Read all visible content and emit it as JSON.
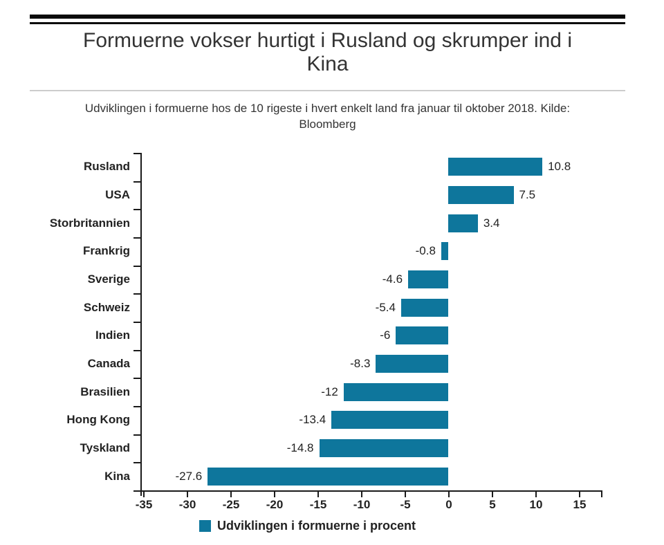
{
  "header": {
    "title_lines": [
      "Formuerne vokser hurtigt i Rusland og skrumper ind i",
      "Kina"
    ],
    "subtitle_lines": [
      "Udviklingen i formuerne hos de 10 rigeste i hvert enkelt land fra januar til oktober 2018. Kilde:",
      "Bloomberg"
    ]
  },
  "chart_data": {
    "type": "bar",
    "orientation": "horizontal",
    "title": "Formuerne vokser hurtigt i Rusland og skrumper ind i Kina",
    "subtitle": "Udviklingen i formuerne hos de 10 rigeste i hvert enkelt land fra januar til oktober 2018. Kilde: Bloomberg",
    "categories": [
      "Rusland",
      "USA",
      "Storbritannien",
      "Frankrig",
      "Sverige",
      "Schweiz",
      "Indien",
      "Canada",
      "Brasilien",
      "Hong Kong",
      "Tyskland",
      "Kina"
    ],
    "values": [
      10.8,
      7.5,
      3.4,
      -0.8,
      -4.6,
      -5.4,
      -6,
      -8.3,
      -12,
      -13.4,
      -14.8,
      -27.6
    ],
    "value_labels": [
      "10.8",
      "7.5",
      "3.4",
      "-0.8",
      "-4.6",
      "-5.4",
      "-6",
      "-8.3",
      "-12",
      "-13.4",
      "-14.8",
      "-27.6"
    ],
    "x_ticks": [
      -35,
      -30,
      -25,
      -20,
      -15,
      -10,
      -5,
      0,
      5,
      10,
      15
    ],
    "x_tick_labels": [
      "-35",
      "-30",
      "-25",
      "-20",
      "-15",
      "-10",
      "-5",
      "0",
      "5",
      "10",
      "15"
    ],
    "xlim": [
      -35,
      17.7
    ],
    "xlabel": "",
    "ylabel": "",
    "grid": false,
    "bar_color": "#0e769c",
    "text_color": "#222222",
    "legend": {
      "label": "Udviklingen i formuerne i procent",
      "swatch_color": "#0e769c",
      "position": "bottom"
    }
  }
}
